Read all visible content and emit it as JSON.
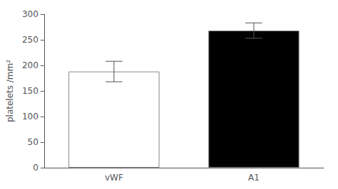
{
  "chart_data": {
    "type": "bar",
    "categories": [
      "vWF",
      "A1"
    ],
    "values": [
      188,
      268
    ],
    "errors": [
      20,
      15
    ],
    "colors": [
      "#ffffff",
      "#000000"
    ],
    "ylabel": "platelets /mm²",
    "ylim": [
      0,
      300
    ],
    "yticks": [
      0,
      50,
      100,
      150,
      200,
      250,
      300
    ],
    "grid": false
  }
}
